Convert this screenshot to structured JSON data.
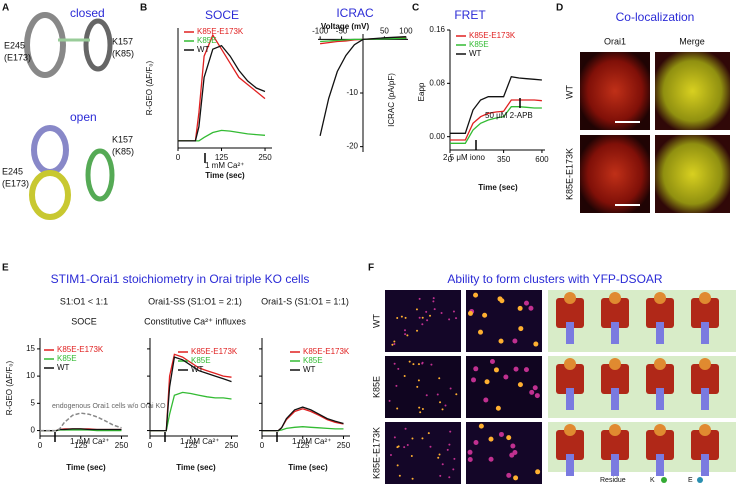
{
  "figure": {
    "letters": [
      "A",
      "B",
      "C",
      "D",
      "E",
      "F"
    ],
    "a": {
      "closed": "closed",
      "open": "open",
      "e_top": "E245",
      "e_top_sub": "(E173)",
      "k_top": "K157",
      "k_top_sub": "(K85)",
      "e_bot": "E245",
      "e_bot_sub": "(E173)",
      "k_bot": "K157",
      "k_bot_sub": "(K85)"
    },
    "d": {
      "title": "Co-localization",
      "columns": [
        "Orai1",
        "Merge"
      ],
      "rows": [
        "WT",
        "K85E-E173K"
      ]
    },
    "e": {
      "title": "STIM1-Orai1 stoichiometry in Orai triple KO cells"
    },
    "f": {
      "title": "Ability to form clusters with YFP-DSOAR",
      "rows": [
        "WT",
        "K85E",
        "K85E-E173K"
      ],
      "legend": [
        "Residue",
        "K",
        "E"
      ]
    }
  },
  "chart_data": [
    {
      "type": "line",
      "title": "SOCE",
      "xlabel": "Time (sec)",
      "ylabel": "R-GEO (ΔF/F₀)",
      "x": [
        0,
        25,
        50,
        60,
        75,
        100,
        125,
        150,
        175,
        200,
        225,
        250
      ],
      "xlim": [
        0,
        270
      ],
      "xticks": [
        0,
        125,
        250
      ],
      "ylim": [
        -1,
        16
      ],
      "series": [
        {
          "name": "K85E-E173K",
          "color": "#e02020",
          "values": [
            0,
            0,
            0,
            4,
            12,
            15,
            13,
            11,
            9,
            8,
            7,
            6
          ]
        },
        {
          "name": "K85E",
          "color": "#33bb33",
          "values": [
            0,
            0,
            0,
            0,
            0.5,
            1.2,
            1.5,
            1.4,
            1.2,
            1,
            0.9,
            0.8
          ]
        },
        {
          "name": "WT",
          "color": "#111111",
          "values": [
            0,
            0,
            0,
            2,
            9,
            13,
            13.5,
            12,
            10,
            8.5,
            7.5,
            7
          ]
        }
      ],
      "annotations": [
        "1 mM Ca²⁺"
      ]
    },
    {
      "type": "line",
      "title": "ICRAC",
      "xlabel": "Voltage (mV)",
      "ylabel": "ICRAC (pA/pF)",
      "x": [
        -100,
        -80,
        -60,
        -40,
        -20,
        0,
        50,
        100
      ],
      "xlim": [
        -105,
        105
      ],
      "xticks": [
        -100,
        -50,
        50,
        100
      ],
      "ylim": [
        -21,
        1
      ],
      "yticks": [
        -10,
        -20
      ],
      "series": [
        {
          "name": "K85E-E173K",
          "color": "#e02020",
          "values": [
            -0.8,
            -0.6,
            -0.4,
            -0.3,
            -0.1,
            0,
            0.2,
            0.4
          ]
        },
        {
          "name": "K85E",
          "color": "#33bb33",
          "values": [
            -0.4,
            -0.3,
            -0.2,
            -0.1,
            0,
            0,
            0.1,
            0.2
          ]
        },
        {
          "name": "WT",
          "color": "#111111",
          "values": [
            -18,
            -11,
            -6,
            -3,
            -1,
            0,
            0.3,
            0.5
          ]
        }
      ],
      "annotations": []
    },
    {
      "type": "line",
      "title": "FRET",
      "xlabel": "Time (sec)",
      "ylabel": "Eapp",
      "x": [
        0,
        100,
        150,
        200,
        250,
        300,
        350,
        400,
        450,
        500,
        550,
        600
      ],
      "xlim": [
        0,
        620
      ],
      "xticks": [
        0,
        350,
        600
      ],
      "ylim": [
        -0.02,
        0.16
      ],
      "yticks": [
        {
          "value": 0,
          "label": "0.00"
        },
        0.08,
        0.16
      ],
      "series": [
        {
          "name": "K85E-E173K",
          "color": "#e02020",
          "values": [
            -0.005,
            -0.005,
            0.02,
            0.03,
            0.035,
            0.037,
            0.038,
            0.055,
            0.055,
            0.055,
            0.055,
            0.054
          ]
        },
        {
          "name": "K85E",
          "color": "#33bb33",
          "values": [
            -0.01,
            -0.01,
            0.01,
            0.02,
            0.025,
            0.028,
            0.03,
            0.045,
            0.045,
            0.044,
            0.043,
            0.043
          ]
        },
        {
          "name": "WT",
          "color": "#111111",
          "values": [
            0.005,
            0.005,
            0.04,
            0.055,
            0.06,
            0.06,
            0.06,
            0.09,
            0.088,
            0.087,
            0.086,
            0.085
          ]
        }
      ],
      "annotations": [
        "2.5 μM iono",
        "50 μM 2-APB"
      ]
    },
    {
      "type": "line",
      "header": "S1:O1 < 1:1",
      "title": "SOCE",
      "xlabel": "Time (sec)",
      "ylabel": "R-GEO (ΔF/F₀)",
      "x": [
        0,
        25,
        50,
        60,
        75,
        100,
        125,
        150,
        175,
        200,
        225,
        250
      ],
      "xlim": [
        0,
        270
      ],
      "xticks": [
        0,
        125,
        250
      ],
      "ylim": [
        -1,
        17
      ],
      "yticks": [
        0,
        5,
        10,
        15
      ],
      "series": [
        {
          "name": "K85E-E173K",
          "color": "#e02020",
          "values": [
            0,
            0,
            0,
            0.2,
            0.3,
            0.3,
            0.3,
            0.3,
            0.2,
            0.2,
            0.2,
            0.2
          ]
        },
        {
          "name": "K85E",
          "color": "#33bb33",
          "values": [
            0,
            0,
            0,
            0.1,
            0.1,
            0.1,
            0.1,
            0.1,
            0,
            0,
            0,
            0
          ]
        },
        {
          "name": "WT",
          "color": "#111111",
          "values": [
            0,
            0,
            0,
            0.2,
            0.2,
            0.3,
            0.3,
            0.2,
            0.2,
            0.2,
            0.2,
            0.2
          ]
        },
        {
          "name": "endogenous Orai1 cells w/o Orai KO",
          "color": "#888888",
          "dash": true,
          "values": [
            0,
            0,
            0,
            0.3,
            1.5,
            2.8,
            3.2,
            3,
            2.5,
            1.8,
            1,
            0.5
          ]
        }
      ],
      "annotations": [
        "1 mM Ca²⁺"
      ]
    },
    {
      "type": "line",
      "header": "Orai1-SS (S1:O1 = 2:1)",
      "title": "Constitutive Ca²⁺ influxes",
      "xlabel": "Time (sec)",
      "x": [
        0,
        25,
        50,
        60,
        75,
        100,
        125,
        150,
        175,
        200,
        225,
        250
      ],
      "xlim": [
        0,
        270
      ],
      "xticks": [
        0,
        125,
        250
      ],
      "ylim": [
        -1,
        17
      ],
      "yticks": [
        0,
        5,
        10,
        15
      ],
      "series": [
        {
          "name": "K85E-E173K",
          "color": "#e02020",
          "values": [
            0,
            0,
            0,
            10,
            14,
            13.5,
            12.5,
            11.5,
            11,
            10.5,
            10,
            9.8
          ]
        },
        {
          "name": "K85E",
          "color": "#33bb33",
          "values": [
            0,
            0,
            0,
            3,
            6.5,
            7,
            6.8,
            6.5,
            6.2,
            6,
            6,
            5.8
          ]
        },
        {
          "name": "WT",
          "color": "#111111",
          "values": [
            0,
            0,
            0,
            8,
            13.5,
            13,
            12,
            11,
            10.5,
            10,
            9.5,
            9
          ]
        }
      ],
      "annotations": [
        "1 mM Ca²⁺"
      ]
    },
    {
      "type": "line",
      "header": "Orai1-S (S1:O1 = 1:1)",
      "xlabel": "Time (sec)",
      "x": [
        0,
        25,
        50,
        60,
        75,
        100,
        125,
        150,
        175,
        200,
        225,
        250
      ],
      "xlim": [
        0,
        270
      ],
      "xticks": [
        0,
        125,
        250
      ],
      "ylim": [
        -1,
        17
      ],
      "yticks": [
        0,
        5,
        10,
        15
      ],
      "series": [
        {
          "name": "K85E-E173K",
          "color": "#e02020",
          "values": [
            0,
            0,
            0,
            0.5,
            2,
            3.5,
            4,
            3.5,
            2.8,
            2,
            1.5,
            1.2
          ]
        },
        {
          "name": "K85E",
          "color": "#33bb33",
          "values": [
            0,
            0,
            0,
            0.1,
            0.4,
            0.6,
            0.7,
            0.6,
            0.5,
            0.4,
            0.3,
            0.3
          ]
        },
        {
          "name": "WT",
          "color": "#111111",
          "values": [
            0,
            0,
            0,
            0.5,
            2.2,
            3.8,
            4.3,
            3.8,
            3,
            2.2,
            1.7,
            1.3
          ]
        }
      ],
      "annotations": [
        "1 mM Ca²⁺"
      ]
    }
  ]
}
